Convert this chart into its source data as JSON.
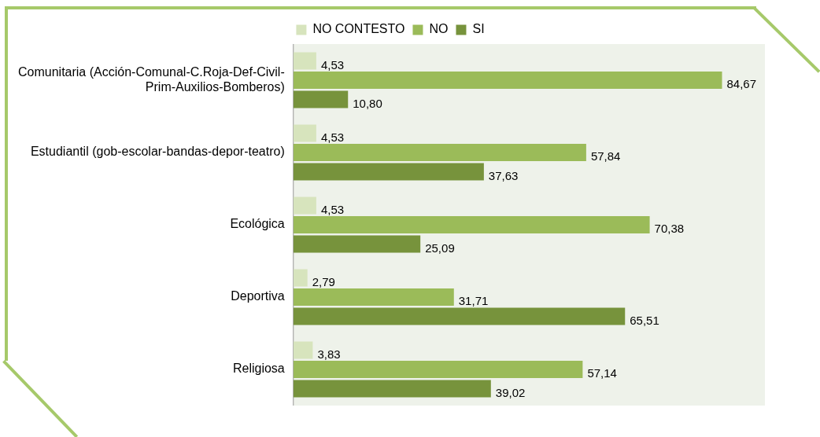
{
  "chart_data": {
    "type": "bar",
    "orientation": "horizontal",
    "legend": "top",
    "categories": [
      "Comunitaria (Acción-Comunal-C.Roja-Def-Civil-Prim-Auxilios-Bomberos)",
      "Estudiantil (gob-escolar-bandas-depor-teatro)",
      "Ecológica",
      "Deportiva",
      "Religiosa"
    ],
    "series": [
      {
        "name": "NO CONTESTO",
        "color": "#d7e4bd",
        "values": [
          4.53,
          4.53,
          4.53,
          2.79,
          3.83
        ],
        "value_labels": [
          "4,53",
          "4,53",
          "4,53",
          "2,79",
          "3,83"
        ]
      },
      {
        "name": "NO",
        "color": "#9bbb59",
        "values": [
          84.67,
          57.84,
          70.38,
          31.71,
          57.14
        ],
        "value_labels": [
          "84,67",
          "57,84",
          "70,38",
          "31,71",
          "57,14"
        ]
      },
      {
        "name": "SI",
        "color": "#77933c",
        "values": [
          10.8,
          37.63,
          25.09,
          65.51,
          39.02
        ],
        "value_labels": [
          "10,80",
          "37,63",
          "25,09",
          "65,51",
          "39,02"
        ]
      }
    ]
  }
}
